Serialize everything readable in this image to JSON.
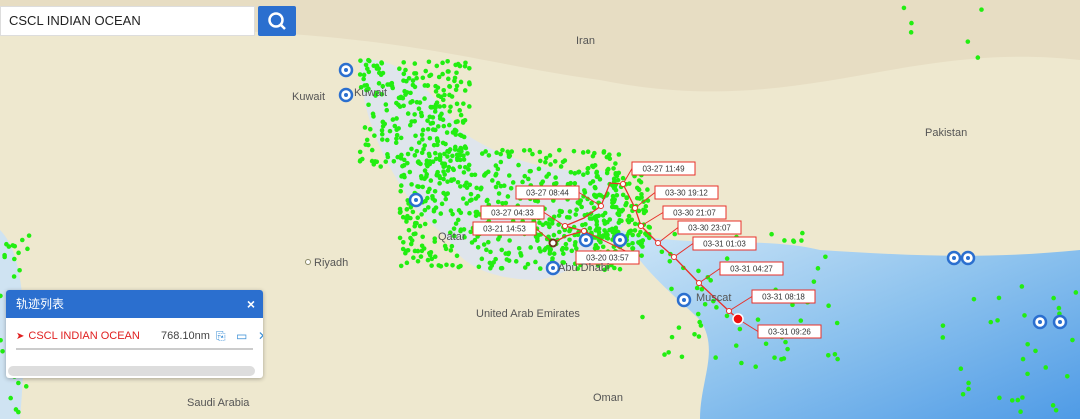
{
  "search": {
    "value": "CSCL INDIAN OCEAN"
  },
  "map_labels": {
    "iran": "Iran",
    "kuwait_country": "Kuwait",
    "kuwait_city": "Kuwait",
    "pakistan": "Pakistan",
    "qatar": "Qatar",
    "riyadh": "Riyadh",
    "abu_dhabi": "Abu Dhabi",
    "uae": "United Arab Emirates",
    "muscat": "Muscat",
    "saudi_arabia": "Saudi Arabia",
    "oman": "Oman"
  },
  "track": {
    "labels": [
      "03-21 14:53",
      "03-20 03:57",
      "03-27 04:33",
      "03-27 08:44",
      "03-27 11:49",
      "03-30 19:12",
      "03-30 21:07",
      "03-30 23:07",
      "03-31 01:03",
      "03-31 04:27",
      "03-31 08:18",
      "03-31 09:26"
    ],
    "color": "#e8302a"
  },
  "panel": {
    "title": "轨迹列表",
    "close": "×",
    "vessel_name": "CSCL INDIAN OCEAN",
    "distance": "768.10nm",
    "remove": "✕"
  },
  "colors": {
    "ship_dot": "#22ee11",
    "accent": "#2b6fcf"
  }
}
